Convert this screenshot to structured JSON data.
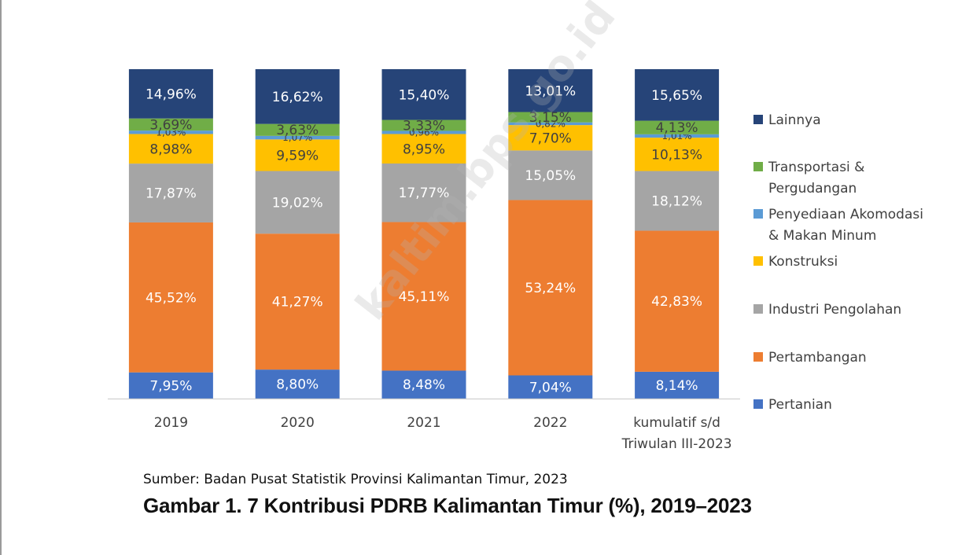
{
  "source_note": "Sumber: Badan Pusat Statistik Provinsi Kalimantan Timur, 2023",
  "figure_caption": "Gambar 1. 7  Kontribusi PDRB Kalimantan Timur (%), 2019–2023",
  "watermark": "kaltim.bps.go.id",
  "chart_data": {
    "type": "bar",
    "stacked": true,
    "normalized": true,
    "title": "",
    "xlabel": "",
    "ylabel": "",
    "ylim": [
      0,
      100
    ],
    "grid": false,
    "legend_position": "right",
    "categories": [
      [
        "2019"
      ],
      [
        "2020"
      ],
      [
        "2021"
      ],
      [
        "2022"
      ],
      [
        "kumulatif s/d",
        "Triwulan III-2023"
      ]
    ],
    "series": [
      {
        "name": "Pertanian",
        "color": "#4472c4",
        "label_color": "#ffffff",
        "values": [
          7.95,
          8.8,
          8.48,
          7.04,
          8.14
        ],
        "labels": [
          "7,95%",
          "8,80%",
          "8,48%",
          "7,04%",
          "8,14%"
        ]
      },
      {
        "name": "Pertambangan",
        "color": "#ed7d31",
        "label_color": "#ffffff",
        "values": [
          45.52,
          41.27,
          45.11,
          53.24,
          42.83
        ],
        "labels": [
          "45,52%",
          "41,27%",
          "45,11%",
          "53,24%",
          "42,83%"
        ]
      },
      {
        "name": "Industri Pengolahan",
        "color": "#a5a5a5",
        "label_color": "#ffffff",
        "values": [
          17.87,
          19.02,
          17.77,
          15.05,
          18.12
        ],
        "labels": [
          "17,87%",
          "19,02%",
          "17,77%",
          "15,05%",
          "18,12%"
        ]
      },
      {
        "name": "Konstruksi",
        "color": "#ffc000",
        "label_color": "#404040",
        "values": [
          8.98,
          9.59,
          8.95,
          7.7,
          10.13
        ],
        "labels": [
          "8,98%",
          "9,59%",
          "8,95%",
          "7,70%",
          "10,13%"
        ]
      },
      {
        "name": "Penyediaan Akomodasi & Makan Minum",
        "legend_lines": [
          "Penyediaan Akomodasi",
          "& Makan Minum"
        ],
        "color": "#5b9bd5",
        "label_color": "#404040",
        "values": [
          1.03,
          1.07,
          0.96,
          0.82,
          1.01
        ],
        "labels": [
          "1,03%",
          "1,07%",
          "0,96%",
          "0,82%",
          "1,01%"
        ]
      },
      {
        "name": "Transportasi & Pergudangan",
        "legend_lines": [
          "Transportasi &",
          "Pergudangan"
        ],
        "color": "#70ad47",
        "label_color": "#404040",
        "values": [
          3.69,
          3.63,
          3.33,
          3.15,
          4.13
        ],
        "labels": [
          "3,69%",
          "3,63%",
          "3,33%",
          "3,15%",
          "4,13%"
        ]
      },
      {
        "name": "Lainnya",
        "color": "#264478",
        "label_color": "#ffffff",
        "values": [
          14.96,
          16.62,
          15.4,
          13.01,
          15.65
        ],
        "labels": [
          "14,96%",
          "16,62%",
          "15,40%",
          "13,01%",
          "15,65%"
        ]
      }
    ],
    "legend_order": [
      "Lainnya",
      "Transportasi & Pergudangan",
      "Penyediaan Akomodasi & Makan Minum",
      "Konstruksi",
      "Industri Pengolahan",
      "Pertambangan",
      "Pertanian"
    ]
  }
}
